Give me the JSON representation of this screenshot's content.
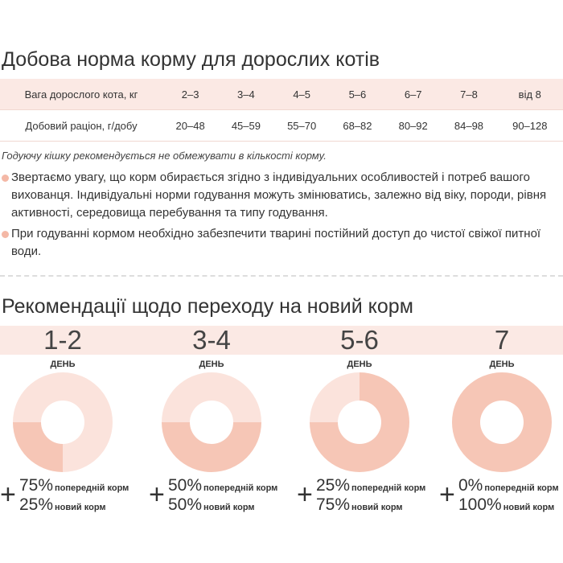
{
  "table": {
    "title": "Добова норма корму для дорослих котів",
    "header": [
      "Вага дорослого кота, кг",
      "2–3",
      "3–4",
      "4–5",
      "5–6",
      "6–7",
      "7–8",
      "від 8"
    ],
    "row": [
      "Добовий раціон, г/добу",
      "20–48",
      "45–59",
      "55–70",
      "68–82",
      "80–92",
      "84–98",
      "90–128"
    ]
  },
  "note": "Годуючу кішку рекомендується не обмежувати в кількості корму.",
  "bullets": [
    "Звертаємо увагу, що корм обирається згідно з індивідуальних особливостей і потреб вашого вихованця. Індивідуальні норми годування можуть змінюватись, залежно від віку, породи, рівня активності, середовища перебування та типу годування.",
    "При годуванні кормом необхідно забезпечити тварині постійний доступ до чистої свіжої питної води."
  ],
  "transition": {
    "title": "Рекомендації щодо переходу на новий корм",
    "colors": {
      "old": "#fbe3dc",
      "new": "#f6c6b6"
    },
    "days": [
      {
        "day": "1-2",
        "unit": "ДЕНЬ",
        "old": 75,
        "old_label": "75%",
        "old_name": "попередній корм",
        "new": 25,
        "new_label": "25%",
        "new_name": "новий корм"
      },
      {
        "day": "3-4",
        "unit": "ДЕНЬ",
        "old": 50,
        "old_label": "50%",
        "old_name": "попередній корм",
        "new": 50,
        "new_label": "50%",
        "new_name": "новий корм"
      },
      {
        "day": "5-6",
        "unit": "ДЕНЬ",
        "old": 25,
        "old_label": "25%",
        "old_name": "попередній корм",
        "new": 75,
        "new_label": "75%",
        "new_name": "новий корм"
      },
      {
        "day": "7",
        "unit": "ДЕНЬ",
        "old": 0,
        "old_label": "0%",
        "old_name": "попередній корм",
        "new": 100,
        "new_label": "100%",
        "new_name": "новий корм"
      }
    ]
  }
}
